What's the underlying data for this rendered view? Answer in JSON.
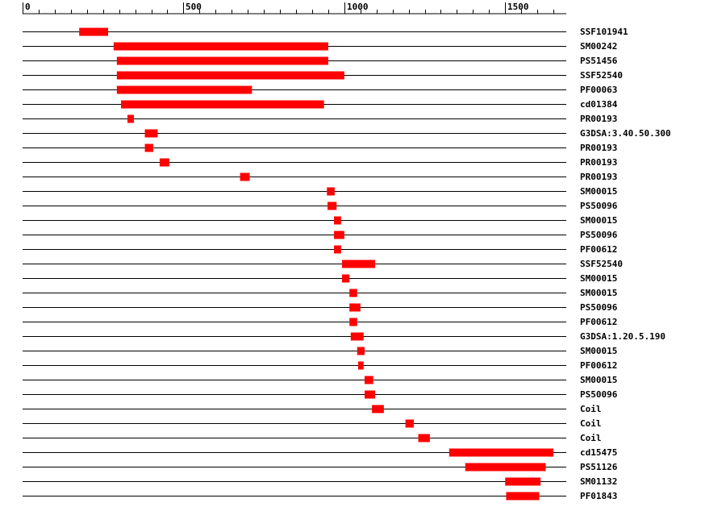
{
  "diagram": {
    "type": "domain_map",
    "axis": {
      "min": 0,
      "max": 1690,
      "major_ticks": [
        0,
        500,
        1000,
        1500
      ],
      "major_tick_labels": [
        "0",
        "500",
        "1000",
        "1500"
      ],
      "minor_tick_step": 50
    },
    "colors": {
      "bar": "#ff0000",
      "line": "#000000",
      "text": "#000000"
    },
    "rows": [
      {
        "label": "SSF101941",
        "start": 176,
        "end": 266
      },
      {
        "label": "SM00242",
        "start": 283,
        "end": 950
      },
      {
        "label": "PS51456",
        "start": 293,
        "end": 950
      },
      {
        "label": "SSF52540",
        "start": 293,
        "end": 1000
      },
      {
        "label": "PF00063",
        "start": 293,
        "end": 713
      },
      {
        "label": "cd01384",
        "start": 306,
        "end": 937
      },
      {
        "label": "PR00193",
        "start": 326,
        "end": 346
      },
      {
        "label": "G3DSA:3.40.50.300",
        "start": 380,
        "end": 420
      },
      {
        "label": "PR00193",
        "start": 380,
        "end": 406
      },
      {
        "label": "PR00193",
        "start": 426,
        "end": 456
      },
      {
        "label": "PR00193",
        "start": 676,
        "end": 706
      },
      {
        "label": "SM00015",
        "start": 946,
        "end": 970
      },
      {
        "label": "PS50096",
        "start": 948,
        "end": 976
      },
      {
        "label": "SM00015",
        "start": 968,
        "end": 990
      },
      {
        "label": "PS50096",
        "start": 968,
        "end": 1000
      },
      {
        "label": "PF00612",
        "start": 968,
        "end": 990
      },
      {
        "label": "SSF52540",
        "start": 993,
        "end": 1096
      },
      {
        "label": "SM00015",
        "start": 993,
        "end": 1016
      },
      {
        "label": "SM00015",
        "start": 1016,
        "end": 1040
      },
      {
        "label": "PS50096",
        "start": 1016,
        "end": 1050
      },
      {
        "label": "PF00612",
        "start": 1016,
        "end": 1040
      },
      {
        "label": "G3DSA:1.20.5.190",
        "start": 1020,
        "end": 1060
      },
      {
        "label": "SM00015",
        "start": 1040,
        "end": 1063
      },
      {
        "label": "PF00612",
        "start": 1043,
        "end": 1060
      },
      {
        "label": "SM00015",
        "start": 1063,
        "end": 1090
      },
      {
        "label": "PS50096",
        "start": 1063,
        "end": 1096
      },
      {
        "label": "Coil",
        "start": 1086,
        "end": 1123
      },
      {
        "label": "Coil",
        "start": 1190,
        "end": 1216
      },
      {
        "label": "Coil",
        "start": 1230,
        "end": 1266
      },
      {
        "label": "cd15475",
        "start": 1326,
        "end": 1650
      },
      {
        "label": "PS51126",
        "start": 1376,
        "end": 1626
      },
      {
        "label": "SM01132",
        "start": 1500,
        "end": 1610
      },
      {
        "label": "PF01843",
        "start": 1503,
        "end": 1606
      }
    ]
  }
}
